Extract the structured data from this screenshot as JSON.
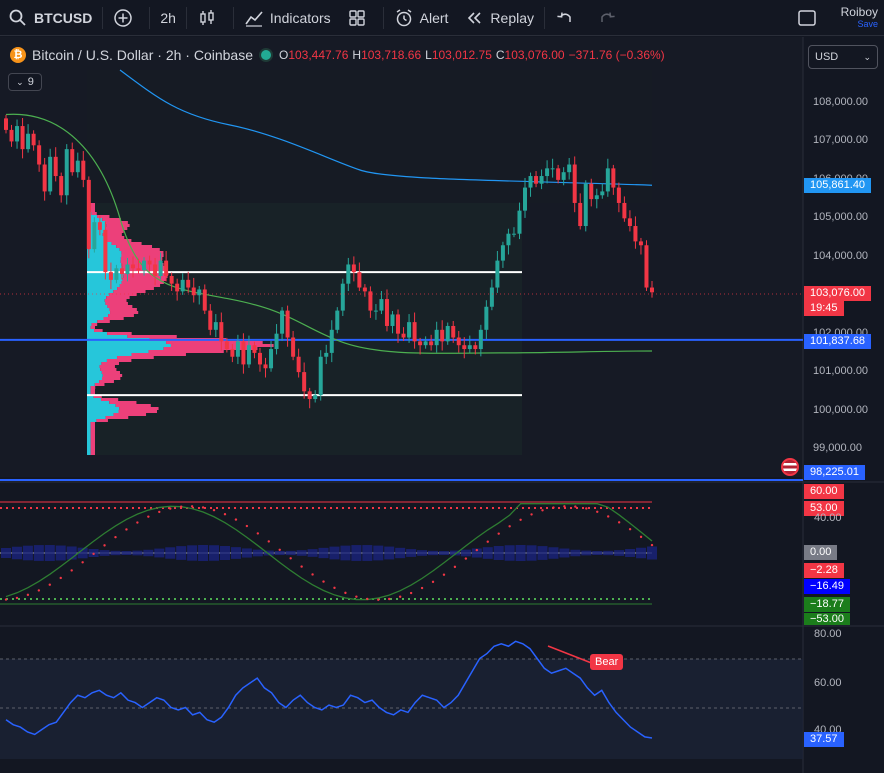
{
  "toolbar": {
    "symbol": "BTCUSD",
    "interval": "2h",
    "indicators": "Indicators",
    "alert": "Alert",
    "replay": "Replay",
    "user_name": "Roiboy",
    "user_save": "Save"
  },
  "legend": {
    "title": "Bitcoin / U.S. Dollar · 2h · Coinbase",
    "o_label": "O",
    "o_value": "103,447.76",
    "h_label": "H",
    "h_value": "103,718.66",
    "l_label": "L",
    "l_value": "103,012.75",
    "c_label": "C",
    "c_value": "103,076.00",
    "change": "−371.76 (−0.36%)",
    "indicator_count": "9"
  },
  "currency": "USD",
  "price_axis": [
    "108,000.00",
    "107,000.00",
    "106,000.00",
    "105,000.00",
    "104,000.00",
    "103,000.00",
    "102,000.00",
    "101,000.00",
    "100,000.00",
    "99,000.00"
  ],
  "price_tags": {
    "vwap": "105,861.40",
    "last": "103,076.00",
    "countdown": "19:45",
    "support": "101,837.68",
    "lower": "98,225.01"
  },
  "osc_tags": [
    "60.00",
    "53.00",
    "40.00",
    "0.00",
    "−2.28",
    "−16.49",
    "−18.77",
    "−53.00"
  ],
  "rsi_axis": [
    "80.00",
    "60.00",
    "40.00"
  ],
  "rsi_tag": "37.57",
  "bear_label": "Bear",
  "colors": {
    "up": "#26a69a",
    "down": "#f23645",
    "vwap": "#2196f3",
    "ma": "#4caf50",
    "profile_a": "#26c6da",
    "profile_b": "#ec407a",
    "support": "#2962ff",
    "rsi": "#2962ff"
  },
  "chart_data": [
    {
      "type": "candlestick",
      "symbol": "BTCUSD",
      "interval": "2h",
      "ylim": [
        98500,
        108800
      ],
      "close": [
        107300,
        107000,
        107400,
        106800,
        107200,
        106900,
        106400,
        105700,
        106600,
        106100,
        105600,
        106800,
        106200,
        106500,
        106000,
        104200,
        104900,
        104700,
        103600,
        103400,
        103700,
        103550,
        103800,
        103700,
        103650,
        103900,
        103800,
        103500,
        103900,
        103500,
        103300,
        103100,
        103400,
        103200,
        103000,
        103150,
        102600,
        102100,
        102300,
        101800,
        101600,
        101400,
        101800,
        101200,
        101700,
        101500,
        101200,
        101100,
        101600,
        102000,
        102600,
        101900,
        101400,
        101000,
        100500,
        100300,
        100400,
        101400,
        101500,
        102100,
        102600,
        103300,
        103800,
        103600,
        103200,
        103100,
        102600,
        102600,
        102900,
        102200,
        102500,
        102000,
        101900,
        102300,
        101800,
        101700,
        101800,
        101700,
        102100,
        101800,
        102200,
        101900,
        101700,
        101600,
        101700,
        101600,
        102100,
        102700,
        103200,
        103900,
        104300,
        104600,
        104600,
        105200,
        105800,
        106100,
        105900,
        106100,
        106300,
        106300,
        106000,
        106200,
        106400,
        105400,
        104800,
        105900,
        105500,
        105600,
        105700,
        106300,
        105800,
        105400,
        105000,
        104800,
        104400,
        104300,
        103200,
        103076
      ],
      "vwap_line_approx": {
        "start": 108600,
        "mid": 105900,
        "end": 105861.4
      },
      "levels": [
        103600,
        101837.68,
        100400,
        98225.01
      ],
      "last_price": 103076.0
    },
    {
      "type": "line",
      "name": "oscillator",
      "ylim": [
        -60,
        65
      ],
      "levels": [
        60,
        53,
        0,
        -53
      ]
    },
    {
      "type": "line",
      "name": "RSI",
      "ylim": [
        30,
        82
      ],
      "last": 37.57,
      "values": [
        45,
        43,
        42,
        40,
        39,
        41,
        43,
        44,
        48,
        52,
        55,
        54,
        56,
        57,
        55,
        54,
        56,
        53,
        52,
        50,
        52,
        54,
        53,
        50,
        49,
        50,
        47,
        48,
        45,
        44,
        46,
        50,
        55,
        58,
        60,
        62,
        58,
        56,
        52,
        50,
        53,
        55,
        52,
        50,
        49,
        51,
        50,
        51,
        55,
        54,
        52,
        53,
        50,
        48,
        47,
        49,
        48,
        52,
        55,
        54,
        53,
        50,
        52,
        55,
        60,
        65,
        70,
        72,
        75,
        76,
        75,
        77,
        76,
        74,
        70,
        66,
        64,
        65,
        66,
        64,
        62,
        58,
        55,
        57,
        52,
        48,
        45,
        42,
        40,
        38,
        37.57
      ]
    }
  ]
}
